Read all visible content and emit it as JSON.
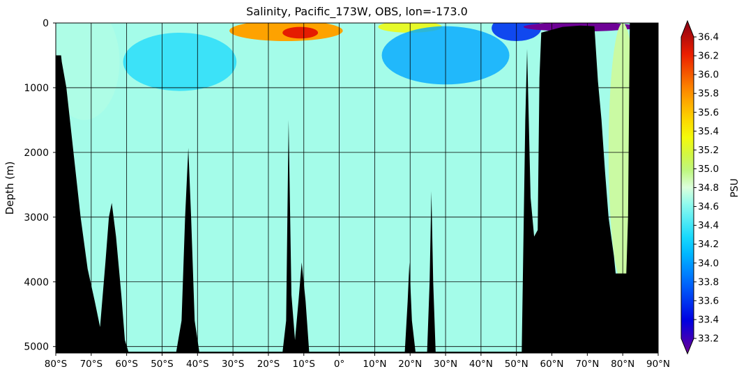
{
  "chart_data": {
    "type": "heatmap",
    "title": "Salinity, Pacific_173W, OBS, lon=-173.0",
    "xlabel": "",
    "ylabel": "Depth (m)",
    "colorbar_label": "PSU",
    "xlim": [
      -80,
      90
    ],
    "ylim": [
      5100,
      0
    ],
    "x_ticks": [
      -80,
      -70,
      -60,
      -50,
      -40,
      -30,
      -20,
      -10,
      0,
      10,
      20,
      30,
      40,
      50,
      60,
      70,
      80,
      90
    ],
    "x_tick_labels": [
      "80°S",
      "70°S",
      "60°S",
      "50°S",
      "40°S",
      "30°S",
      "20°S",
      "10°S",
      "0°",
      "10°N",
      "20°N",
      "30°N",
      "40°N",
      "50°N",
      "60°N",
      "70°N",
      "80°N",
      "90°N"
    ],
    "y_ticks": [
      0,
      1000,
      2000,
      3000,
      4000,
      5000
    ],
    "y_tick_labels": [
      "0",
      "1000",
      "2000",
      "3000",
      "4000",
      "5000"
    ],
    "colorbar_range": [
      33.2,
      36.4
    ],
    "colorbar_ticks": [
      33.2,
      33.4,
      33.6,
      33.8,
      34.0,
      34.2,
      34.4,
      34.6,
      34.8,
      35.0,
      35.2,
      35.4,
      35.6,
      35.8,
      36.0,
      36.2,
      36.4
    ],
    "colorbar_tick_labels": [
      "33.2",
      "33.4",
      "33.6",
      "33.8",
      "34.0",
      "34.2",
      "34.4",
      "34.6",
      "34.8",
      "35.0",
      "35.2",
      "35.4",
      "35.6",
      "35.8",
      "36.0",
      "36.2",
      "36.4"
    ],
    "grid": true,
    "land_color": "#000000",
    "salinity_blobs": [
      {
        "lat": -72,
        "depth": 600,
        "rlat": 10,
        "rdepth": 900,
        "value": 34.72,
        "weight": 0.6
      },
      {
        "lat": -15,
        "depth": 120,
        "rlat": 16,
        "rdepth": 160,
        "value": 35.65,
        "weight": 1.0
      },
      {
        "lat": -11,
        "depth": 150,
        "rlat": 5,
        "rdepth": 90,
        "value": 36.1,
        "weight": 1.0
      },
      {
        "lat": 20,
        "depth": 60,
        "rlat": 9,
        "rdepth": 90,
        "value": 35.25,
        "weight": 0.9
      },
      {
        "lat": 30,
        "depth": 500,
        "rlat": 18,
        "rdepth": 450,
        "value": 34.1,
        "weight": 0.8
      },
      {
        "lat": -45,
        "depth": 600,
        "rlat": 16,
        "rdepth": 450,
        "value": 34.3,
        "weight": 0.7
      },
      {
        "lat": 50,
        "depth": 80,
        "rlat": 7,
        "rdepth": 200,
        "value": 33.7,
        "weight": 0.9
      },
      {
        "lat": 68,
        "depth": 60,
        "rlat": 16,
        "rdepth": 70,
        "value": 33.2,
        "weight": 1.0
      },
      {
        "lat": 80,
        "depth": 2000,
        "rlat": 4,
        "rdepth": 2000,
        "value": 34.9,
        "weight": 1.0
      }
    ],
    "bottom_depth": [
      [
        -80,
        500
      ],
      [
        -78.5,
        500
      ],
      [
        -78.3,
        600
      ],
      [
        -77,
        1000
      ],
      [
        -75,
        2000
      ],
      [
        -73,
        3000
      ],
      [
        -71,
        3800
      ],
      [
        -69,
        4300
      ],
      [
        -67.5,
        4700
      ],
      [
        -66,
        3700
      ],
      [
        -65,
        3000
      ],
      [
        -64.2,
        2780
      ],
      [
        -63,
        3300
      ],
      [
        -61.5,
        4200
      ],
      [
        -60.5,
        4900
      ],
      [
        -59.5,
        5080
      ],
      [
        -46,
        5080
      ],
      [
        -44.5,
        4600
      ],
      [
        -43.5,
        3000
      ],
      [
        -42.6,
        1930
      ],
      [
        -41.8,
        3000
      ],
      [
        -40.8,
        4600
      ],
      [
        -39.5,
        5080
      ],
      [
        -16,
        5080
      ],
      [
        -15,
        4600
      ],
      [
        -14.3,
        1500
      ],
      [
        -13.5,
        4200
      ],
      [
        -12.5,
        4900
      ],
      [
        -11.5,
        4300
      ],
      [
        -10.6,
        3700
      ],
      [
        -9.5,
        4300
      ],
      [
        -8.5,
        5080
      ],
      [
        18.5,
        5080
      ],
      [
        19.3,
        4300
      ],
      [
        19.8,
        3700
      ],
      [
        20.5,
        4600
      ],
      [
        21.5,
        5080
      ],
      [
        24.8,
        5080
      ],
      [
        25.5,
        4000
      ],
      [
        26,
        2600
      ],
      [
        26.5,
        4000
      ],
      [
        27.2,
        5080
      ],
      [
        51.5,
        5080
      ],
      [
        52.5,
        1500
      ],
      [
        53,
        400
      ],
      [
        54,
        2700
      ],
      [
        55,
        3300
      ],
      [
        56,
        3200
      ],
      [
        56.5,
        850
      ],
      [
        57,
        150
      ],
      [
        63,
        60
      ],
      [
        68,
        40
      ],
      [
        72,
        50
      ],
      [
        73,
        900
      ],
      [
        74,
        1500
      ],
      [
        75,
        2300
      ],
      [
        76,
        3000
      ],
      [
        77.5,
        3600
      ],
      [
        78,
        3870
      ],
      [
        81,
        3870
      ],
      [
        81.5,
        3000
      ],
      [
        82,
        0
      ],
      [
        90,
        0
      ]
    ]
  }
}
